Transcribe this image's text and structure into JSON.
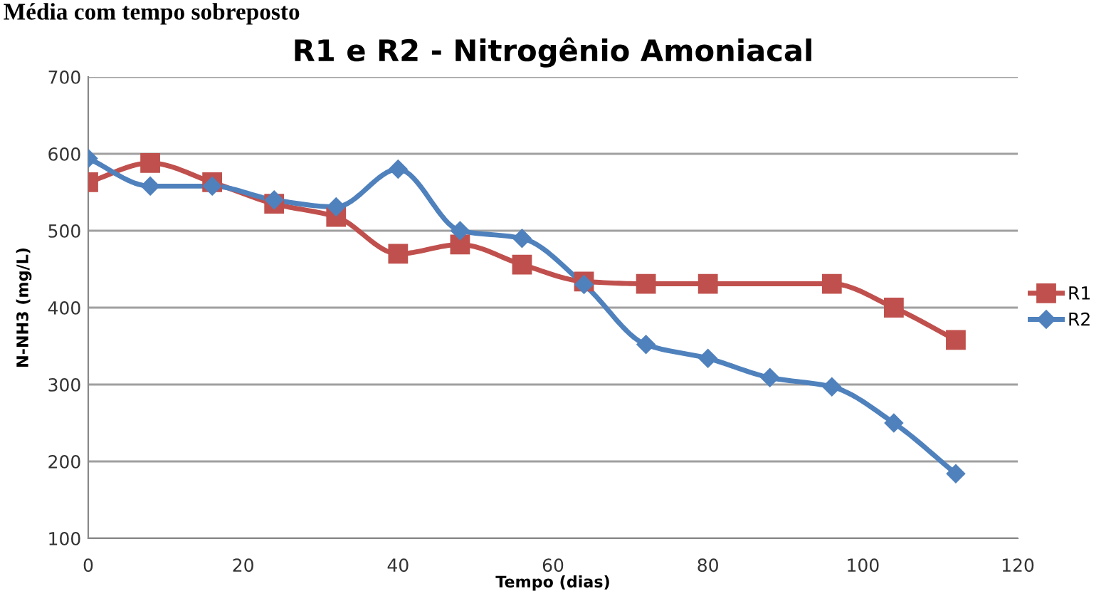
{
  "chart_data": {
    "type": "line",
    "title": "R1 e R2 - Nitrogênio Amoniacal",
    "xlabel": "Tempo (dias)",
    "ylabel": "N-NH3 (mg/L)",
    "annotations": [
      "Média com tempo sobreposto"
    ],
    "xlim": [
      0,
      120
    ],
    "xticks": [
      0,
      20,
      40,
      60,
      80,
      100,
      120
    ],
    "ylim": [
      100,
      700
    ],
    "yticks": [
      100,
      200,
      300,
      400,
      500,
      600,
      700
    ],
    "grid": "y",
    "legend": "right",
    "line_style": "solid",
    "series": [
      {
        "name": "R1",
        "color": "#c0504d",
        "marker": "square",
        "x": [
          0,
          8,
          16,
          24,
          32,
          40,
          48,
          56,
          64,
          72,
          80,
          96,
          104,
          112
        ],
        "values": [
          563,
          588,
          563,
          535,
          518,
          470,
          482,
          456,
          434,
          431,
          431,
          431,
          400,
          358
        ]
      },
      {
        "name": "R2",
        "color": "#4f81bd",
        "marker": "diamond",
        "x": [
          0,
          8,
          16,
          24,
          32,
          40,
          48,
          56,
          64,
          72,
          80,
          88,
          96,
          104,
          112
        ],
        "values": [
          594,
          558,
          558,
          540,
          531,
          580,
          500,
          490,
          430,
          352,
          334,
          309,
          297,
          250,
          184
        ]
      }
    ]
  }
}
